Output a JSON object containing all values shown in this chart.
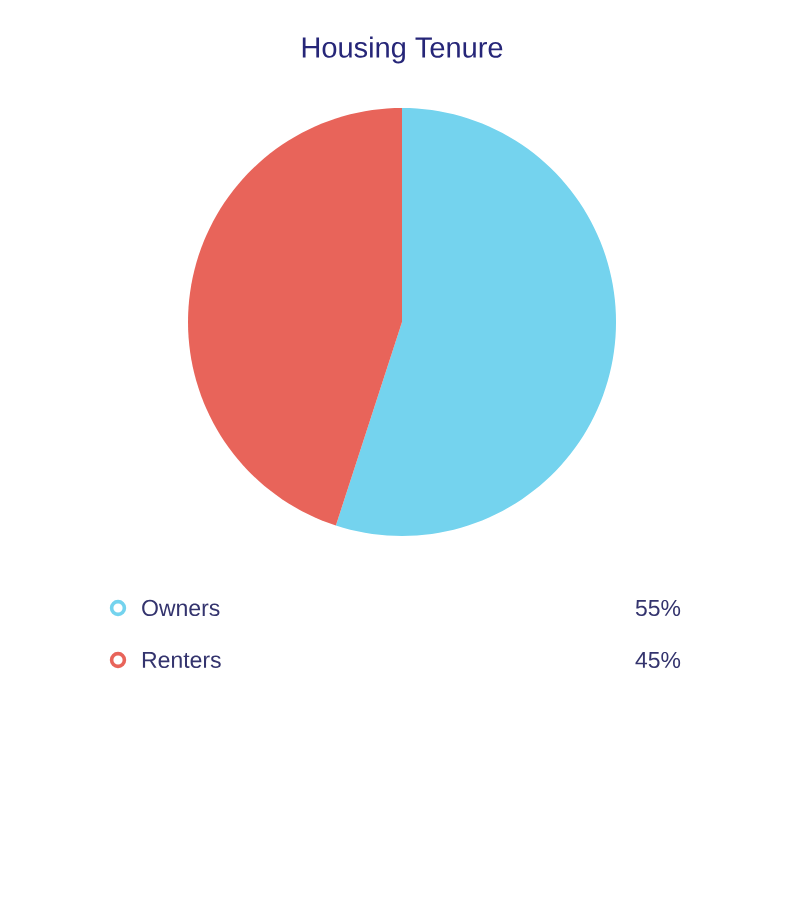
{
  "chart_data": {
    "type": "pie",
    "title": "Housing Tenure",
    "categories": [
      "Owners",
      "Renters"
    ],
    "values": [
      55,
      45
    ],
    "value_labels": [
      "55%",
      "45%"
    ],
    "colors": [
      "#74d3ee",
      "#e8645a"
    ],
    "legend": "bottom"
  }
}
